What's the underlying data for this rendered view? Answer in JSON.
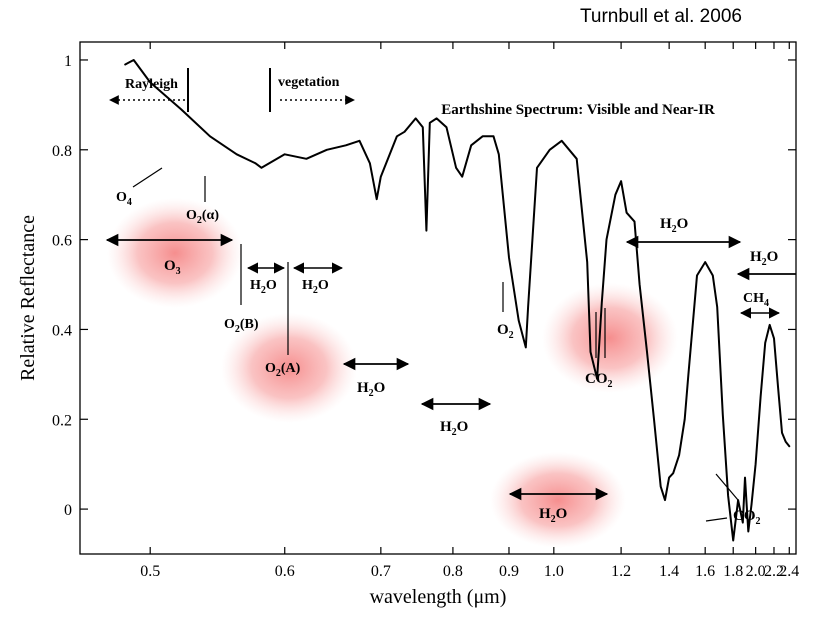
{
  "citation": "Turnbull et al. 2006",
  "chart_data": {
    "type": "line",
    "title": "Earthshine Spectrum: Visible and Near-IR",
    "xlabel": "wavelength (μm)",
    "ylabel": "Relative Reflectance",
    "x_scale": "reciprocal",
    "xlim": [
      0.46,
      2.5
    ],
    "ylim": [
      -0.1,
      1.04
    ],
    "grid": false,
    "x_ticks": [
      0.5,
      0.6,
      0.7,
      0.8,
      0.9,
      1.0,
      1.2,
      1.4,
      1.6,
      1.8,
      2.0,
      2.2,
      2.4
    ],
    "x_tick_labels": [
      "0.5",
      "0.6",
      "0.7",
      "0.8",
      "0.9",
      "1.0",
      "1.2",
      "1.4",
      "1.6",
      "1.8",
      "2.0",
      "2.2",
      "2.4"
    ],
    "y_ticks": [
      0,
      0.2,
      0.4,
      0.6,
      0.8,
      1
    ],
    "y_tick_labels": [
      "0",
      "0.2",
      "0.4",
      "0.6",
      "0.8",
      "1"
    ],
    "series": [
      {
        "color": "#000000",
        "x": [
          0.485,
          0.49,
          0.5,
          0.52,
          0.54,
          0.56,
          0.575,
          0.58,
          0.6,
          0.62,
          0.64,
          0.66,
          0.675,
          0.687,
          0.695,
          0.7,
          0.72,
          0.73,
          0.745,
          0.755,
          0.76,
          0.765,
          0.775,
          0.79,
          0.805,
          0.815,
          0.83,
          0.85,
          0.87,
          0.88,
          0.9,
          0.92,
          0.935,
          0.94,
          0.96,
          0.99,
          1.02,
          1.06,
          1.09,
          1.1,
          1.12,
          1.135,
          1.15,
          1.18,
          1.2,
          1.22,
          1.25,
          1.27,
          1.3,
          1.33,
          1.36,
          1.38,
          1.4,
          1.42,
          1.45,
          1.48,
          1.5,
          1.55,
          1.6,
          1.65,
          1.68,
          1.72,
          1.76,
          1.8,
          1.84,
          1.88,
          1.9,
          1.93,
          1.96,
          2.0,
          2.05,
          2.1,
          2.15,
          2.2,
          2.25,
          2.3,
          2.35,
          2.4
        ],
        "y": [
          0.99,
          1.0,
          0.95,
          0.89,
          0.83,
          0.79,
          0.77,
          0.76,
          0.79,
          0.78,
          0.8,
          0.81,
          0.82,
          0.77,
          0.69,
          0.74,
          0.83,
          0.84,
          0.87,
          0.85,
          0.62,
          0.86,
          0.87,
          0.85,
          0.76,
          0.74,
          0.81,
          0.83,
          0.83,
          0.79,
          0.56,
          0.42,
          0.36,
          0.45,
          0.76,
          0.8,
          0.82,
          0.78,
          0.55,
          0.35,
          0.29,
          0.46,
          0.6,
          0.7,
          0.73,
          0.66,
          0.64,
          0.5,
          0.35,
          0.2,
          0.05,
          0.02,
          0.07,
          0.08,
          0.12,
          0.2,
          0.3,
          0.52,
          0.55,
          0.52,
          0.45,
          0.21,
          0.03,
          -0.07,
          0.02,
          -0.03,
          0.07,
          -0.05,
          0.01,
          0.1,
          0.25,
          0.37,
          0.41,
          0.38,
          0.27,
          0.17,
          0.15,
          0.14
        ]
      }
    ],
    "annotations": [
      {
        "label": "Rayleigh",
        "subscript": ""
      },
      {
        "label": "vegetation",
        "subscript": ""
      },
      {
        "label": "O",
        "subscript": "4"
      },
      {
        "label": "O",
        "subscript": "2",
        "suffix": "(α)"
      },
      {
        "label": "O",
        "subscript": "3"
      },
      {
        "label": "O",
        "subscript": "2",
        "suffix": "(B)"
      },
      {
        "label": "O",
        "subscript": "2",
        "suffix": "(A)"
      },
      {
        "label": "H",
        "subscript": "2",
        "suffix": "O"
      },
      {
        "label": "CO",
        "subscript": "2"
      },
      {
        "label": "CH",
        "subscript": "4"
      }
    ]
  }
}
